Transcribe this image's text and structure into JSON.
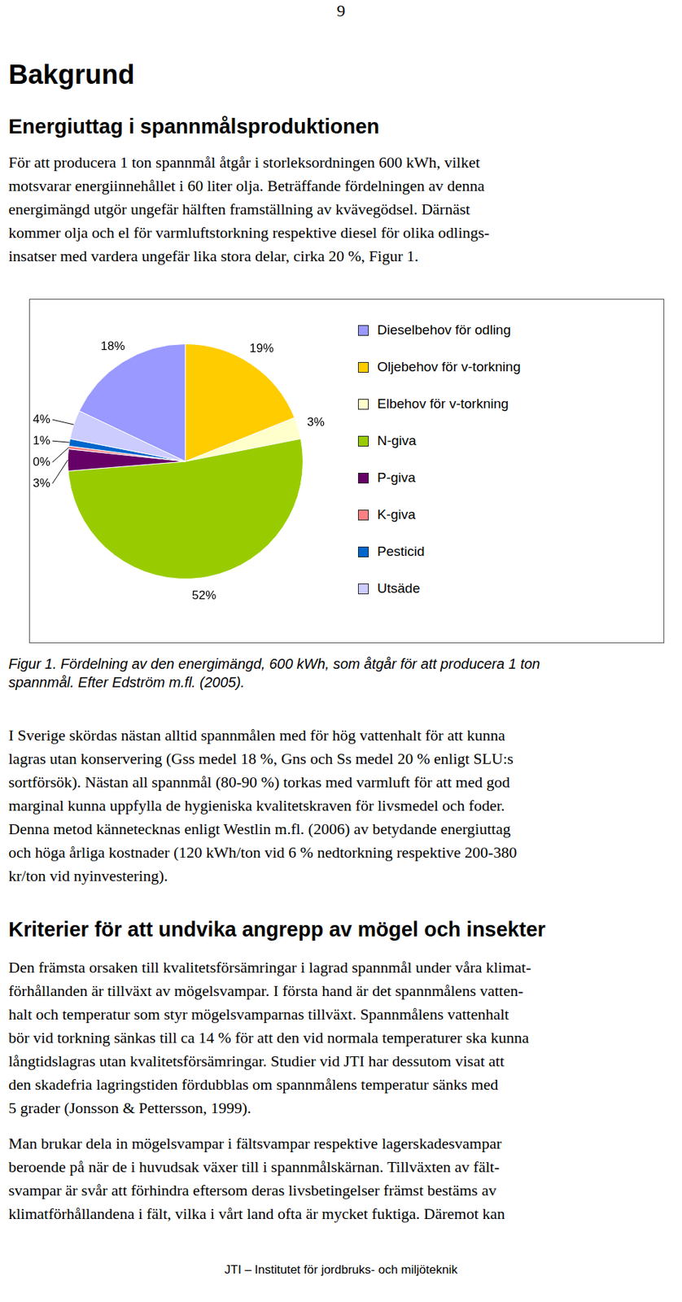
{
  "page_number": "9",
  "title": "Bakgrund",
  "section1": {
    "heading": "Energiuttag i spannmålsproduktionen",
    "paragraph1": [
      "För att producera 1 ton spannmål åtgår i storleksordningen 600 kWh, vilket",
      "motsvarar energiinnehållet i 60 liter olja. Beträffande fördelningen av denna",
      "energimängd utgör ungefär hälften framställning av kvävegödsel. Därnäst",
      "kommer olja och el för varmluftstorkning respektive diesel för olika odlings-",
      "insatser med vardera ungefär lika stora delar, cirka 20 %, Figur 1."
    ],
    "caption": [
      "Figur 1. Fördelning av den energimängd, 600 kWh, som åtgår för att producera 1 ton",
      "spannmål. Efter Edström m.fl. (2005)."
    ],
    "paragraph2": [
      "I Sverige skördas nästan alltid spannmålen med för hög vattenhalt för att kunna",
      "lagras utan konservering (Gss medel 18 %, Gns och Ss medel 20 % enligt SLU:s",
      "sortförsök). Nästan all spannmål (80-90 %) torkas med varmluft för att med god",
      "marginal kunna uppfylla de hygieniska kvalitetskraven för livsmedel och foder.",
      "Denna metod kännetecknas enligt Westlin m.fl. (2006) av betydande energiuttag",
      "och höga årliga kostnader (120 kWh/ton vid 6 % nedtorkning respektive 200-380",
      "kr/ton vid nyinvestering)."
    ]
  },
  "chart_data": {
    "type": "pie",
    "categories": [
      "Dieselbehov för odling",
      "Oljebehov för v-torkning",
      "Elbehov för v-torkning",
      "N-giva",
      "P-giva",
      "K-giva",
      "Pesticid",
      "Utsäde"
    ],
    "values": [
      18,
      19,
      3,
      52,
      3,
      0.4,
      1,
      4
    ],
    "value_labels": [
      "18%",
      "19%",
      "3%",
      "52%",
      "3%",
      "0%",
      "1%",
      "4%"
    ],
    "colors": [
      "#9999ff",
      "#ffcc00",
      "#ffffcc",
      "#99cc00",
      "#660066",
      "#ff8080",
      "#0066cc",
      "#ccccff"
    ],
    "legend": "right",
    "data_labels": true
  },
  "section2": {
    "heading": "Kriterier för att undvika angrepp av mögel och insekter",
    "paragraph1": [
      "Den främsta orsaken till kvalitetsförsämringar i lagrad spannmål under våra klimat-",
      "förhållanden är tillväxt av mögelsvampar. I första hand är det spannmålens vatten-",
      "halt och temperatur som styr mögelsvamparnas tillväxt. Spannmålens vattenhalt",
      "bör vid torkning sänkas till ca 14 % för att den vid normala temperaturer ska kunna",
      "långtidslagras utan kvalitetsförsämringar. Studier vid JTI har dessutom visat att",
      "den skadefria lagringstiden fördubblas om spannmålens temperatur sänks med",
      "5 grader (Jonsson & Pettersson, 1999)."
    ],
    "paragraph2": [
      "Man brukar dela in mögelsvampar i fältsvampar respektive lagerskadesvampar",
      "beroende på när de i huvudsak växer till i spannmålskärnan. Tillväxten av fält-",
      "svampar är svår att förhindra eftersom deras livsbetingelser främst bestäms av",
      "klimatförhållandena i fält, vilka i vårt land ofta är mycket fuktiga. Däremot kan"
    ]
  },
  "footer": "JTI – Institutet för jordbruks- och miljöteknik"
}
